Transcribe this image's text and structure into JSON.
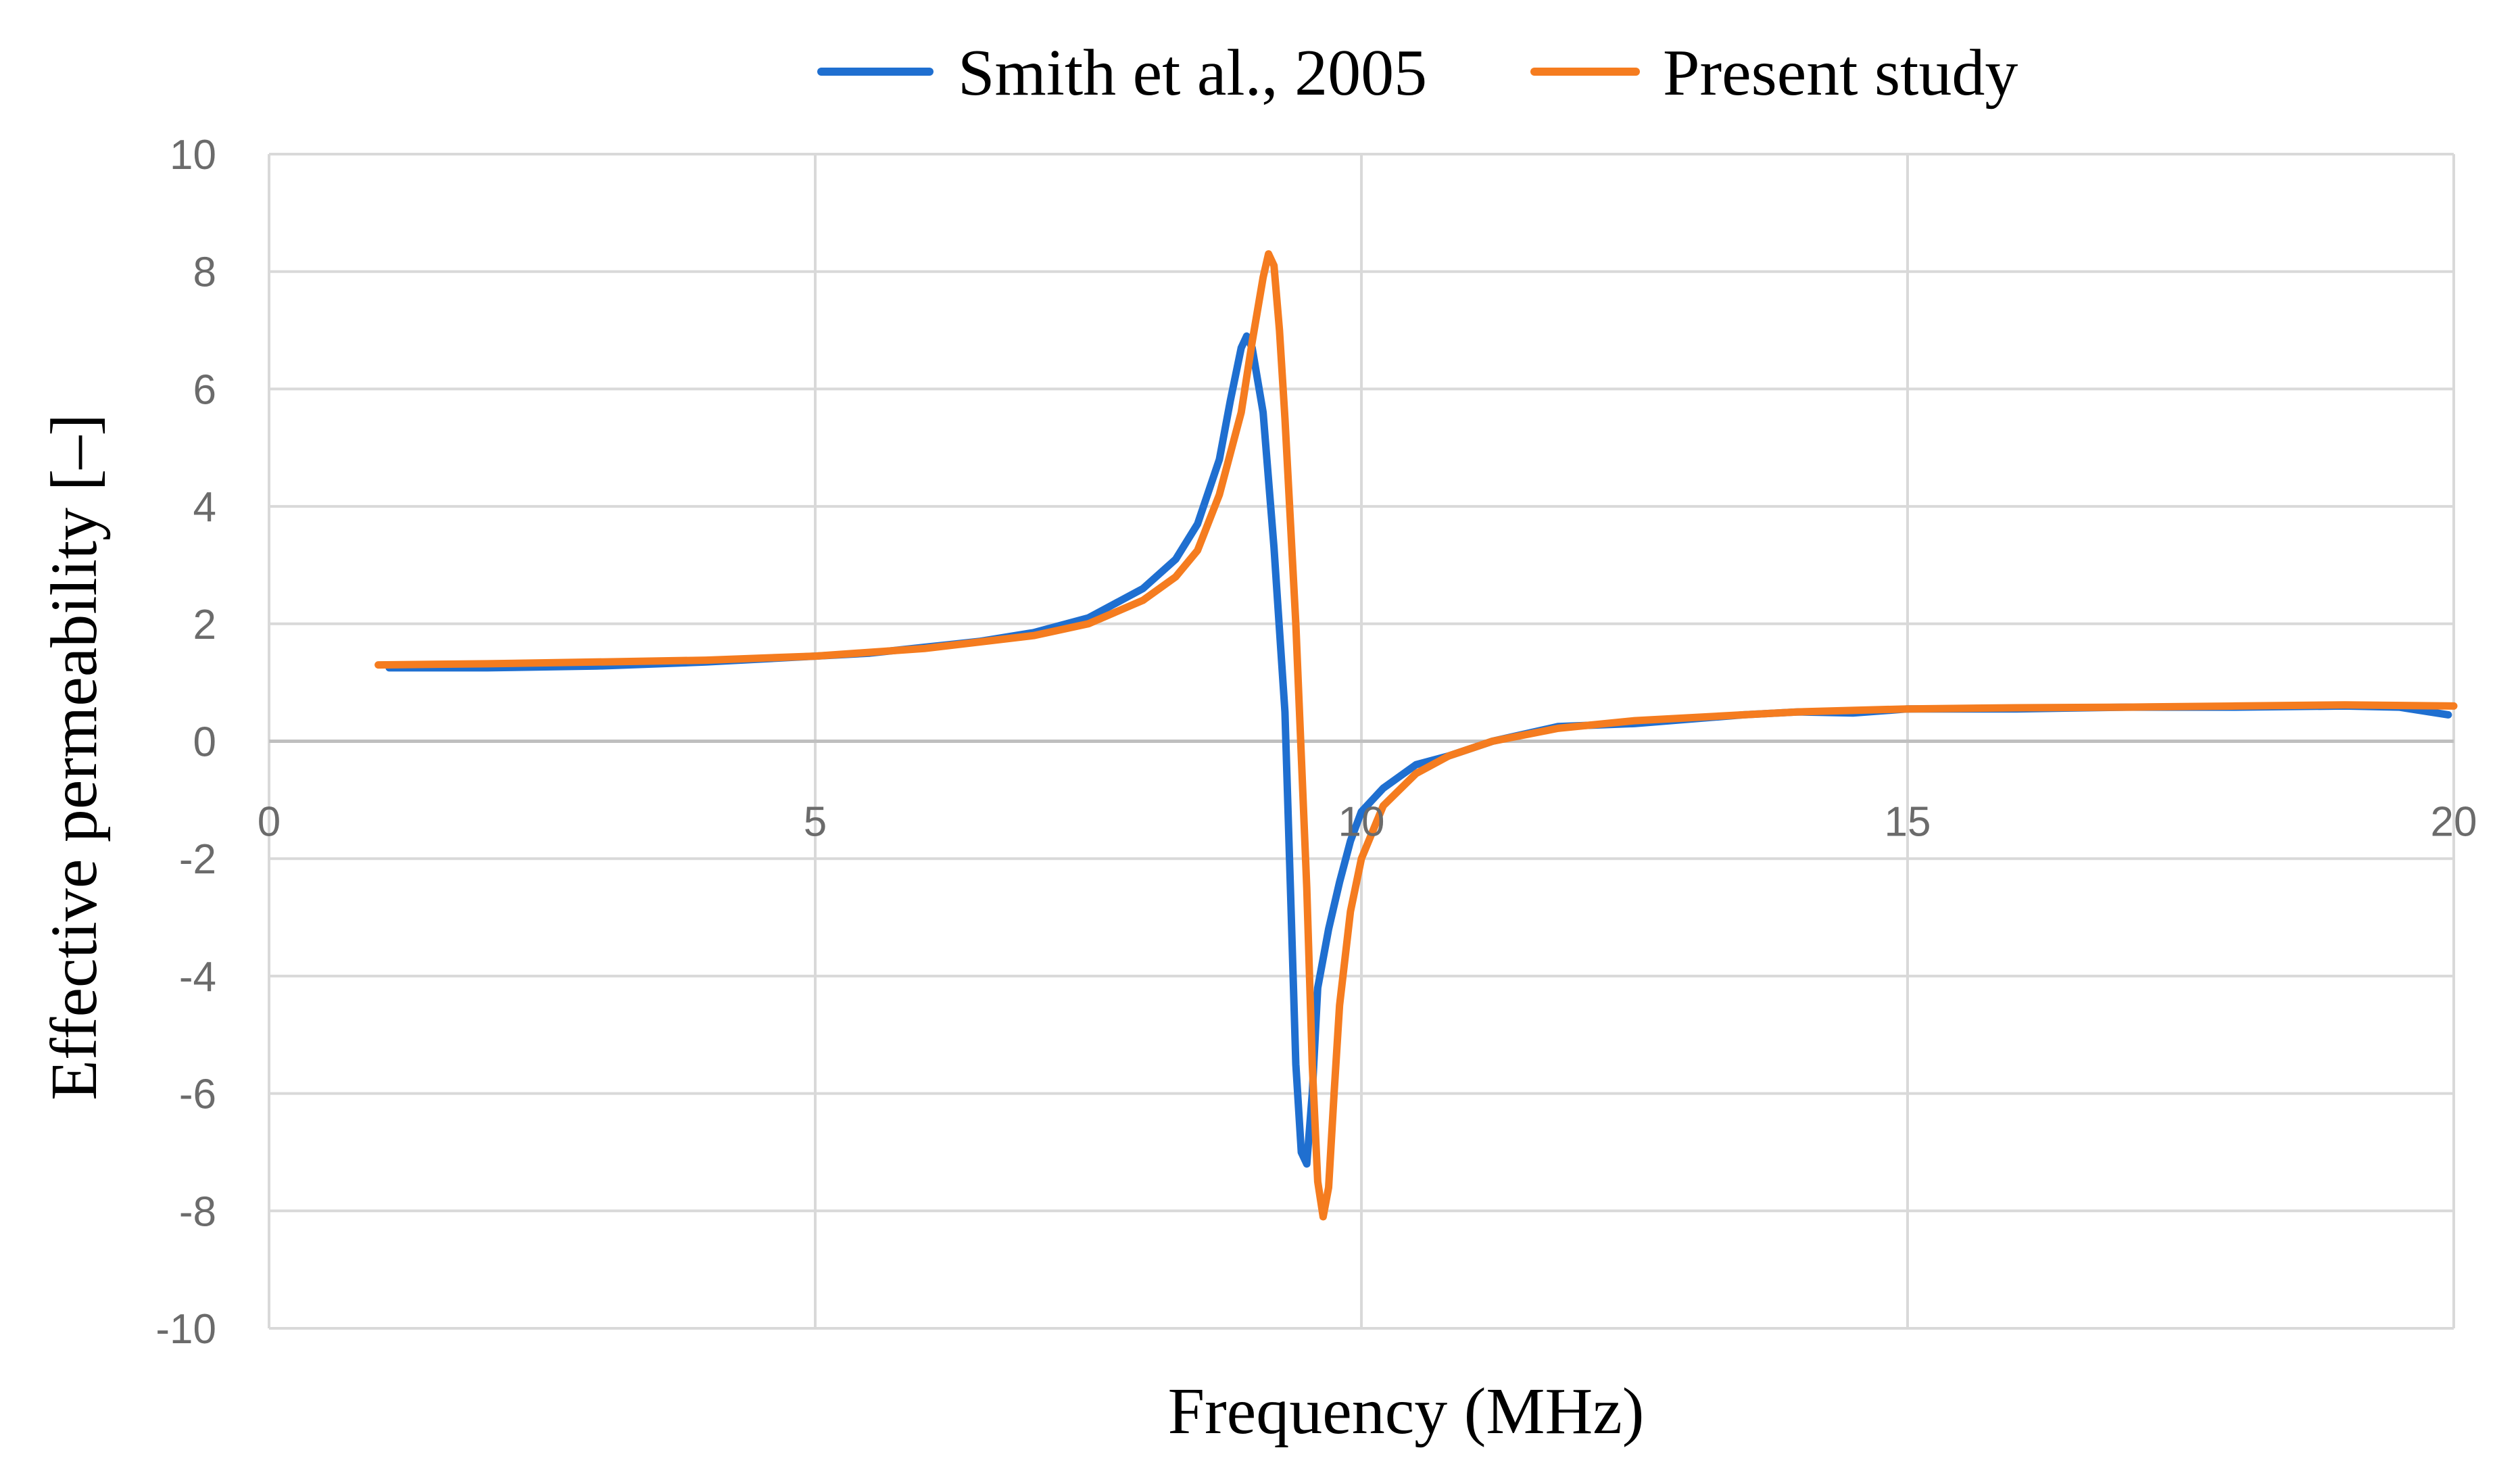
{
  "chart_data": {
    "type": "line",
    "title": "",
    "xlabel": "Frequency (MHz)",
    "ylabel": "Effective permeability [–]",
    "xlim": [
      0,
      20
    ],
    "ylim": [
      -10,
      10
    ],
    "xticks": [
      0,
      5,
      10,
      15,
      20
    ],
    "yticks": [
      10,
      8,
      6,
      4,
      2,
      0,
      -2,
      -4,
      -6,
      -8,
      -10
    ],
    "grid": true,
    "legend_position": "top-center",
    "series": [
      {
        "name": "Smith et al., 2005",
        "color": "#1f6fd0",
        "x": [
          1.1,
          2,
          3,
          4,
          5,
          5.5,
          6,
          6.5,
          7,
          7.5,
          8,
          8.3,
          8.5,
          8.7,
          8.8,
          8.9,
          8.95,
          9.0,
          9.1,
          9.2,
          9.3,
          9.35,
          9.4,
          9.45,
          9.5,
          9.55,
          9.6,
          9.7,
          9.8,
          9.9,
          10.0,
          10.2,
          10.5,
          10.8,
          11.2,
          11.8,
          12.5,
          13.5,
          14.0,
          14.5,
          15,
          16,
          17,
          18,
          19,
          19.5,
          19.95
        ],
        "y": [
          1.25,
          1.25,
          1.28,
          1.35,
          1.45,
          1.5,
          1.6,
          1.7,
          1.85,
          2.1,
          2.6,
          3.1,
          3.7,
          4.8,
          5.8,
          6.7,
          6.9,
          6.7,
          5.6,
          3.3,
          0.5,
          -2.5,
          -5.5,
          -7.0,
          -7.2,
          -6.0,
          -4.2,
          -3.2,
          -2.4,
          -1.7,
          -1.2,
          -0.8,
          -0.4,
          -0.25,
          0.0,
          0.25,
          0.3,
          0.45,
          0.5,
          0.48,
          0.55,
          0.55,
          0.58,
          0.58,
          0.6,
          0.58,
          0.45
        ]
      },
      {
        "name": "Present study",
        "color": "#f57c1f",
        "x": [
          1.0,
          2,
          3,
          4,
          5,
          6,
          7,
          7.5,
          8,
          8.3,
          8.5,
          8.7,
          8.9,
          9.0,
          9.1,
          9.15,
          9.2,
          9.25,
          9.3,
          9.4,
          9.5,
          9.55,
          9.6,
          9.65,
          9.7,
          9.75,
          9.8,
          9.9,
          10.0,
          10.2,
          10.5,
          10.8,
          11.2,
          11.8,
          12.5,
          13.5,
          14,
          15,
          16,
          17,
          18,
          19,
          20
        ],
        "y": [
          1.3,
          1.32,
          1.35,
          1.38,
          1.45,
          1.58,
          1.8,
          2.0,
          2.4,
          2.8,
          3.25,
          4.2,
          5.6,
          6.8,
          7.9,
          8.3,
          8.1,
          7.0,
          5.5,
          2.0,
          -2.5,
          -5.5,
          -7.5,
          -8.1,
          -7.6,
          -6.0,
          -4.5,
          -2.9,
          -2.0,
          -1.1,
          -0.55,
          -0.25,
          0.0,
          0.22,
          0.35,
          0.45,
          0.5,
          0.55,
          0.57,
          0.58,
          0.6,
          0.62,
          0.6
        ]
      }
    ]
  }
}
